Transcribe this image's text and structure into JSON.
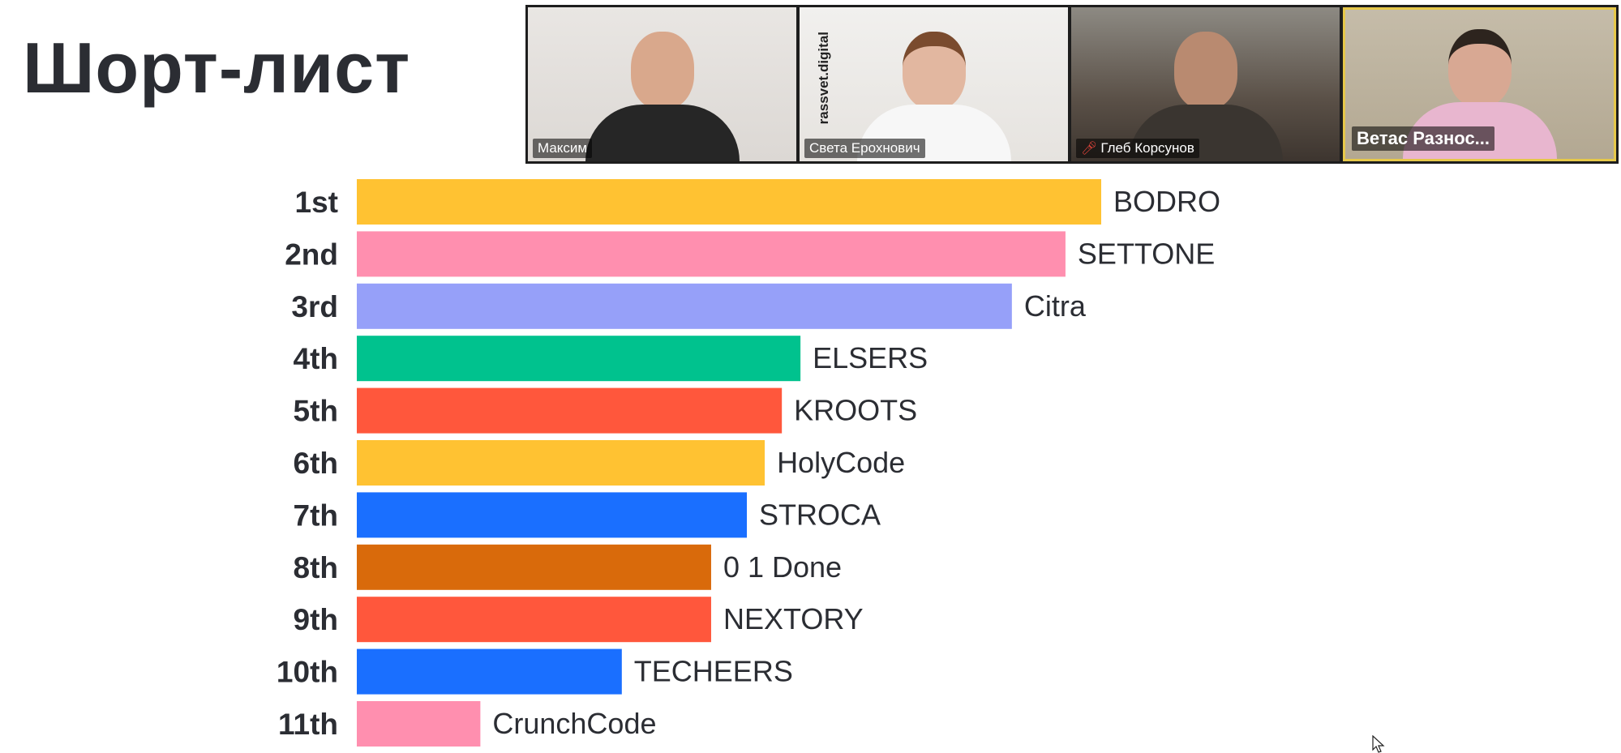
{
  "slide": {
    "title": "Шорт-лист"
  },
  "video_tiles": [
    {
      "name": "Максим",
      "muted": false
    },
    {
      "name": "Света Ерохнович",
      "muted": false,
      "brand": "rassvet.digital"
    },
    {
      "name": "Глеб Корсунов",
      "muted": true
    },
    {
      "name": "Ветас Разнос...",
      "muted": false,
      "active_speaker": true
    }
  ],
  "chart_data": {
    "type": "bar",
    "orientation": "horizontal",
    "categories": [
      "1st",
      "2nd",
      "3rd",
      "4th",
      "5th",
      "6th",
      "7th",
      "8th",
      "9th",
      "10th",
      "11th"
    ],
    "series": [
      {
        "values": [
          100,
          95.2,
          88.0,
          59.6,
          57.1,
          54.8,
          52.4,
          47.6,
          47.6,
          35.6,
          16.6
        ]
      }
    ],
    "bar_labels": [
      "BODRO",
      "SETTONE",
      "Citra",
      "ELSERS",
      "KROOTS",
      "HolyCode",
      "STROCA",
      "0 1 Done",
      "NEXTORY",
      "TECHEERS",
      "CrunchCode"
    ],
    "colors": [
      "#FFC232",
      "#FF8FAF",
      "#96A0F9",
      "#00C28E",
      "#FF573C",
      "#FFC232",
      "#1A6FFF",
      "#D96A0B",
      "#FF573C",
      "#1A6FFF",
      "#FF8FAF"
    ],
    "title": "",
    "xlabel": "",
    "ylabel": "",
    "xlim": [
      0,
      100
    ],
    "grid": false,
    "legend": "none"
  }
}
